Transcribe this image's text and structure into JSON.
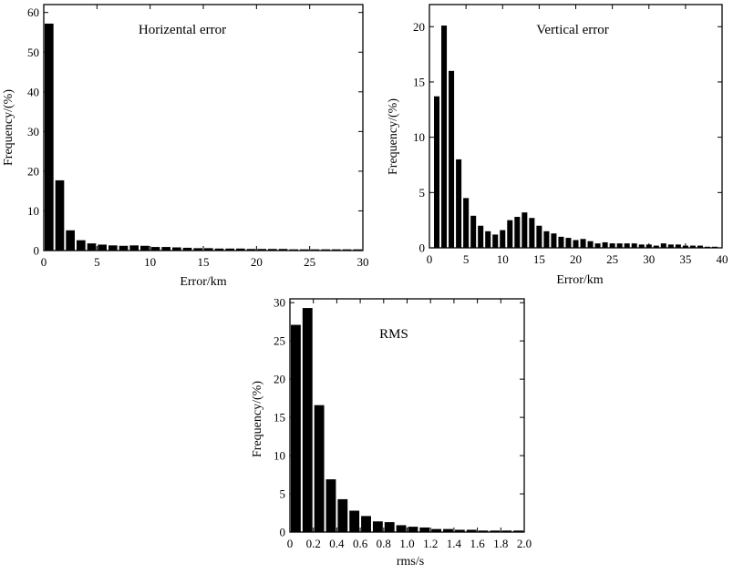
{
  "chart_data": [
    {
      "type": "bar",
      "title": "Horizental error",
      "xlabel": "Error/km",
      "ylabel": "Frequency/(%)",
      "xlim": [
        0,
        30
      ],
      "ylim": [
        0,
        62
      ],
      "xticks": [
        0,
        5,
        10,
        15,
        20,
        25,
        30
      ],
      "xtick_labels": [
        "0",
        "5",
        "10",
        "15",
        "20",
        "25",
        "30"
      ],
      "yticks": [
        0,
        10,
        20,
        30,
        40,
        50,
        60
      ],
      "ytick_labels": [
        "0",
        "10",
        "20",
        "30",
        "40",
        "50",
        "60"
      ],
      "bin_width": 1,
      "x": [
        0.5,
        1.5,
        2.5,
        3.5,
        4.5,
        5.5,
        6.5,
        7.5,
        8.5,
        9.5,
        10.5,
        11.5,
        12.5,
        13.5,
        14.5,
        15.5,
        16.5,
        17.5,
        18.5,
        19.5,
        20.5,
        21.5,
        22.5,
        23.5,
        24.5,
        25.5,
        26.5,
        27.5,
        28.5,
        29.5
      ],
      "values": [
        57.2,
        17.7,
        5.1,
        2.6,
        1.8,
        1.5,
        1.3,
        1.2,
        1.3,
        1.2,
        0.9,
        0.9,
        0.8,
        0.7,
        0.6,
        0.6,
        0.5,
        0.5,
        0.5,
        0.4,
        0.4,
        0.4,
        0.4,
        0.3,
        0.3,
        0.3,
        0.3,
        0.3,
        0.3,
        0.3
      ]
    },
    {
      "type": "bar",
      "title": "Vertical error",
      "xlabel": "Error/km",
      "ylabel": "Frequency/(%)",
      "xlim": [
        0,
        40
      ],
      "ylim": [
        0,
        22
      ],
      "xticks": [
        0,
        5,
        10,
        15,
        20,
        25,
        30,
        35,
        40
      ],
      "xtick_labels": [
        "0",
        "5",
        "10",
        "15",
        "20",
        "25",
        "30",
        "35",
        "40"
      ],
      "yticks": [
        0,
        5,
        10,
        15,
        20
      ],
      "ytick_labels": [
        "0",
        "5",
        "10",
        "15",
        "20"
      ],
      "bin_width": 1,
      "x": [
        1,
        2,
        3,
        4,
        5,
        6,
        7,
        8,
        9,
        10,
        11,
        12,
        13,
        14,
        15,
        16,
        17,
        18,
        19,
        20,
        21,
        22,
        23,
        24,
        25,
        26,
        27,
        28,
        29,
        30,
        31,
        32,
        33,
        34,
        35,
        36,
        37,
        38,
        39
      ],
      "values": [
        13.7,
        20.1,
        16.0,
        8.0,
        4.5,
        2.9,
        2.0,
        1.5,
        1.2,
        1.6,
        2.5,
        2.8,
        3.2,
        2.7,
        2.0,
        1.5,
        1.3,
        1.0,
        0.9,
        0.7,
        0.8,
        0.6,
        0.4,
        0.5,
        0.4,
        0.4,
        0.4,
        0.4,
        0.3,
        0.3,
        0.2,
        0.4,
        0.3,
        0.3,
        0.2,
        0.2,
        0.2,
        0.1,
        0.1
      ]
    },
    {
      "type": "bar",
      "title": "RMS",
      "xlabel": "rms/s",
      "ylabel": "Frequency/(%)",
      "xlim": [
        0,
        2.0
      ],
      "ylim": [
        0,
        30.5
      ],
      "xticks": [
        0,
        0.2,
        0.4,
        0.6,
        0.8,
        1.0,
        1.2,
        1.4,
        1.6,
        1.8,
        2.0
      ],
      "xtick_labels": [
        "0",
        "0.2",
        "0.4",
        "0.6",
        "0.8",
        "1.0",
        "1.2",
        "1.4",
        "1.6",
        "1.8",
        "2.0"
      ],
      "yticks": [
        0,
        5,
        10,
        15,
        20,
        25,
        30
      ],
      "ytick_labels": [
        "0",
        "5",
        "10",
        "15",
        "20",
        "25",
        "30"
      ],
      "bin_width": 0.1,
      "x": [
        0.05,
        0.15,
        0.25,
        0.35,
        0.45,
        0.55,
        0.65,
        0.75,
        0.85,
        0.95,
        1.05,
        1.15,
        1.25,
        1.35,
        1.45,
        1.55,
        1.65,
        1.75,
        1.85,
        1.95
      ],
      "values": [
        27.1,
        29.3,
        16.6,
        6.9,
        4.3,
        2.8,
        2.1,
        1.4,
        1.3,
        0.9,
        0.7,
        0.6,
        0.4,
        0.4,
        0.3,
        0.3,
        0.2,
        0.2,
        0.2,
        0.2
      ]
    }
  ]
}
